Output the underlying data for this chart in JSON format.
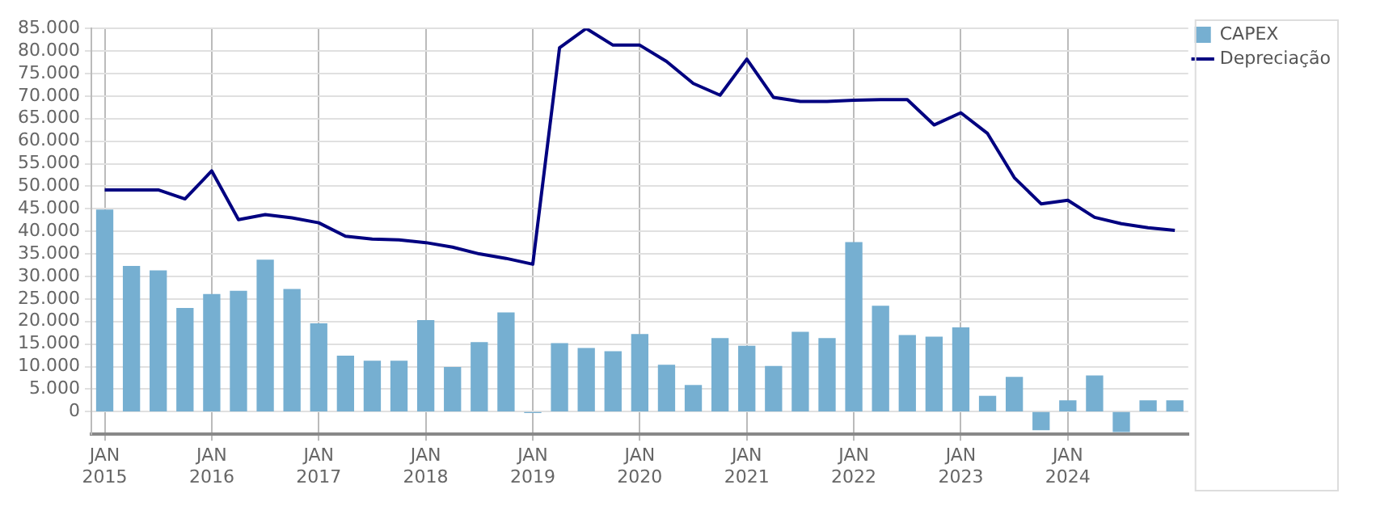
{
  "chart_data": {
    "type": "bar",
    "legend": "top right",
    "grid": true,
    "categories": [
      "JAN 2015",
      null,
      null,
      null,
      "JAN 2016",
      null,
      null,
      null,
      "JAN 2017",
      null,
      null,
      null,
      "JAN 2018",
      null,
      null,
      null,
      "JAN 2019",
      null,
      null,
      null,
      "JAN 2020",
      null,
      null,
      null,
      "JAN 2021",
      null,
      null,
      null,
      "JAN 2022",
      null,
      null,
      null,
      "JAN 2023",
      null,
      null,
      null,
      "JAN 2024",
      null,
      null,
      null,
      null
    ],
    "ylim": [
      -5000,
      85000
    ],
    "yticks": [
      0,
      {
        "value": 5000,
        "label": "5.000"
      },
      {
        "value": 10000,
        "label": "10.000"
      },
      {
        "value": 15000,
        "label": "15.000"
      },
      {
        "value": 20000,
        "label": "20.000"
      },
      {
        "value": 25000,
        "label": "25.000"
      },
      {
        "value": 30000,
        "label": "30.000"
      },
      {
        "value": 35000,
        "label": "35.000"
      },
      {
        "value": 40000,
        "label": "40.000"
      },
      {
        "value": 45000,
        "label": "45.000"
      },
      {
        "value": 50000,
        "label": "50.000"
      },
      {
        "value": 55000,
        "label": "55.000"
      },
      {
        "value": 60000,
        "label": "60.000"
      },
      {
        "value": 65000,
        "label": "65.000"
      },
      {
        "value": 70000,
        "label": "70.000"
      },
      {
        "value": 75000,
        "label": "75.000"
      },
      {
        "value": 80000,
        "label": "80.000"
      },
      {
        "value": 85000,
        "label": "85.000"
      }
    ],
    "series": [
      {
        "name": "CAPEX",
        "color": "#76afd1",
        "values": [
          44700,
          32200,
          31200,
          22900,
          26000,
          26700,
          33600,
          27100,
          19500,
          12300,
          11200,
          11200,
          20200,
          9800,
          15300,
          21900,
          -200,
          15100,
          14000,
          13300,
          17100,
          10300,
          5800,
          16200,
          14500,
          10000,
          17600,
          16200,
          37500,
          23400,
          16900,
          16500,
          18600,
          3400,
          7600,
          -4000,
          2400,
          7900,
          -4400,
          2400,
          2400
        ]
      },
      {
        "name": "Depreciação",
        "type": "line",
        "color": "#000080",
        "marker": "none",
        "values": [
          49200,
          49200,
          49200,
          47200,
          53400,
          42600,
          43700,
          43000,
          41900,
          38900,
          38300,
          38100,
          37500,
          36500,
          35000,
          34000,
          32700,
          80700,
          85000,
          81300,
          81300,
          77700,
          72800,
          70200,
          78200,
          69700,
          68800,
          68800,
          69100,
          69200,
          69200,
          63600,
          66300,
          61700,
          51900,
          46100,
          46900,
          43100,
          41700,
          40800,
          40200
        ]
      }
    ]
  }
}
